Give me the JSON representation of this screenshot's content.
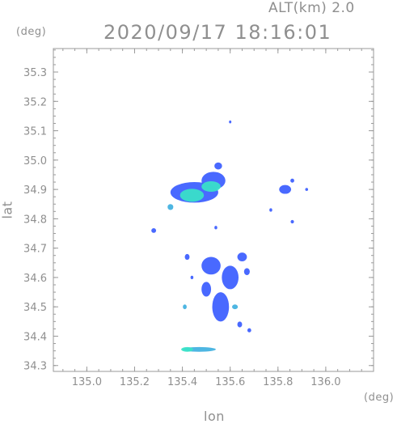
{
  "header": {
    "altitude_label": "ALT(km)  2.0",
    "timestamp": "2020/09/17 18:16:01"
  },
  "chart_data": {
    "type": "heatmap",
    "xlabel": "lon",
    "ylabel": "lat",
    "x_unit": "(deg)",
    "y_unit": "(deg)",
    "xlim": [
      134.86,
      136.2
    ],
    "ylim": [
      34.28,
      35.38
    ],
    "xticks": [
      135.0,
      135.2,
      135.4,
      135.6,
      135.8,
      136.0
    ],
    "xtick_labels": [
      "135.0",
      "135.2",
      "135.4",
      "135.6",
      "135.8",
      "136.0"
    ],
    "yticks": [
      34.3,
      34.4,
      34.5,
      34.6,
      34.7,
      34.8,
      34.9,
      35.0,
      35.1,
      35.2,
      35.3
    ],
    "ytick_labels": [
      "34.3",
      "34.4",
      "34.5",
      "34.6",
      "34.7",
      "34.8",
      "34.9",
      "35.0",
      "35.1",
      "35.2",
      "35.3"
    ],
    "grid": true,
    "colors": {
      "low": "#3a5cff",
      "mid": "#3fb0e0",
      "high": "#39e3c8",
      "axis": "#9a9a9a"
    },
    "echo_cells": [
      {
        "lon": 135.44,
        "lat": 34.88,
        "rx": 0.05,
        "ry": 0.022,
        "level": "high"
      },
      {
        "lon": 135.52,
        "lat": 34.91,
        "rx": 0.04,
        "ry": 0.018,
        "level": "high"
      },
      {
        "lon": 135.45,
        "lat": 34.89,
        "rx": 0.1,
        "ry": 0.035,
        "level": "low"
      },
      {
        "lon": 135.53,
        "lat": 34.93,
        "rx": 0.05,
        "ry": 0.03,
        "level": "low"
      },
      {
        "lon": 135.55,
        "lat": 34.98,
        "rx": 0.016,
        "ry": 0.012,
        "level": "low"
      },
      {
        "lon": 135.35,
        "lat": 34.84,
        "rx": 0.012,
        "ry": 0.01,
        "level": "mid"
      },
      {
        "lon": 135.28,
        "lat": 34.76,
        "rx": 0.01,
        "ry": 0.008,
        "level": "low"
      },
      {
        "lon": 135.6,
        "lat": 35.13,
        "rx": 0.005,
        "ry": 0.005,
        "level": "low"
      },
      {
        "lon": 135.54,
        "lat": 34.77,
        "rx": 0.006,
        "ry": 0.006,
        "level": "low"
      },
      {
        "lon": 135.83,
        "lat": 34.9,
        "rx": 0.025,
        "ry": 0.015,
        "level": "low"
      },
      {
        "lon": 135.86,
        "lat": 34.93,
        "rx": 0.008,
        "ry": 0.007,
        "level": "low"
      },
      {
        "lon": 135.92,
        "lat": 34.9,
        "rx": 0.006,
        "ry": 0.005,
        "level": "low"
      },
      {
        "lon": 135.77,
        "lat": 34.83,
        "rx": 0.006,
        "ry": 0.006,
        "level": "low"
      },
      {
        "lon": 135.86,
        "lat": 34.79,
        "rx": 0.007,
        "ry": 0.006,
        "level": "low"
      },
      {
        "lon": 135.52,
        "lat": 34.64,
        "rx": 0.04,
        "ry": 0.03,
        "level": "low"
      },
      {
        "lon": 135.6,
        "lat": 34.6,
        "rx": 0.035,
        "ry": 0.04,
        "level": "low"
      },
      {
        "lon": 135.56,
        "lat": 34.5,
        "rx": 0.035,
        "ry": 0.05,
        "level": "low"
      },
      {
        "lon": 135.5,
        "lat": 34.56,
        "rx": 0.02,
        "ry": 0.025,
        "level": "low"
      },
      {
        "lon": 135.65,
        "lat": 34.67,
        "rx": 0.02,
        "ry": 0.015,
        "level": "low"
      },
      {
        "lon": 135.67,
        "lat": 34.62,
        "rx": 0.012,
        "ry": 0.012,
        "level": "low"
      },
      {
        "lon": 135.42,
        "lat": 34.67,
        "rx": 0.01,
        "ry": 0.01,
        "level": "low"
      },
      {
        "lon": 135.44,
        "lat": 34.6,
        "rx": 0.006,
        "ry": 0.006,
        "level": "low"
      },
      {
        "lon": 135.62,
        "lat": 34.5,
        "rx": 0.012,
        "ry": 0.008,
        "level": "mid"
      },
      {
        "lon": 135.41,
        "lat": 34.5,
        "rx": 0.008,
        "ry": 0.008,
        "level": "mid"
      },
      {
        "lon": 135.64,
        "lat": 34.44,
        "rx": 0.01,
        "ry": 0.01,
        "level": "low"
      },
      {
        "lon": 135.68,
        "lat": 34.42,
        "rx": 0.008,
        "ry": 0.007,
        "level": "low"
      },
      {
        "lon": 135.47,
        "lat": 34.355,
        "rx": 0.07,
        "ry": 0.008,
        "level": "mid"
      },
      {
        "lon": 135.42,
        "lat": 34.355,
        "rx": 0.025,
        "ry": 0.008,
        "level": "high"
      }
    ]
  }
}
